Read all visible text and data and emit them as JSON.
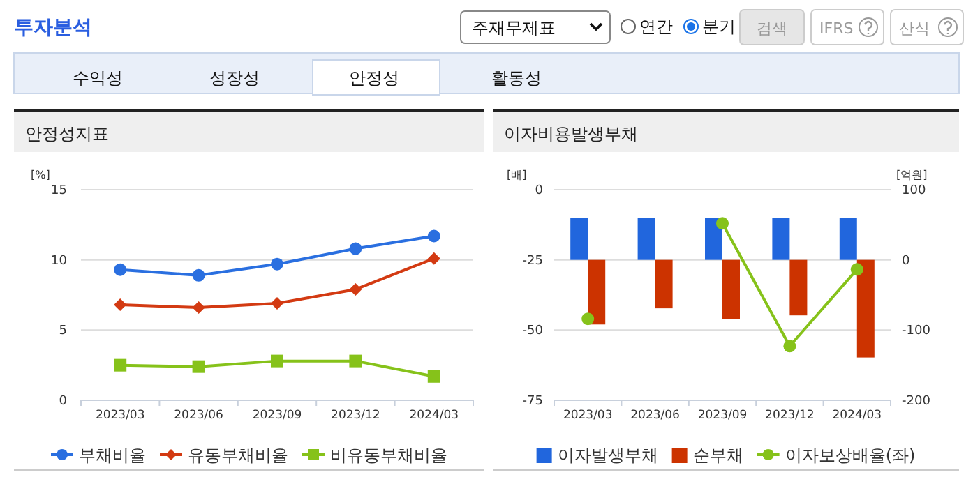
{
  "chart_data": [
    {
      "type": "other",
      "title": "투자분석",
      "annotations": [
        "주재무제표",
        "연간",
        "분기",
        "검색",
        "IFRS",
        "산식",
        "수익성",
        "성장성",
        "안정성",
        "활동성"
      ]
    },
    {
      "type": "line",
      "title": "안정성지표",
      "ylabel": "[%]",
      "categories": [
        "2023/03",
        "2023/06",
        "2023/09",
        "2023/12",
        "2024/03"
      ],
      "ylim": [
        0,
        15
      ],
      "yticks": [
        0,
        5,
        10,
        15
      ],
      "grid": "y",
      "legend": "bottom",
      "series": [
        {
          "name": "부채비율",
          "color": "#2a6fe0",
          "marker": "circle",
          "values": [
            9.3,
            8.9,
            9.7,
            10.8,
            11.7
          ]
        },
        {
          "name": "유동부채비율",
          "color": "#d33a12",
          "marker": "diamond",
          "values": [
            6.8,
            6.6,
            6.9,
            7.9,
            10.1
          ]
        },
        {
          "name": "비유동부채비율",
          "color": "#86c21a",
          "marker": "square",
          "values": [
            2.5,
            2.4,
            2.8,
            2.8,
            1.7
          ]
        }
      ]
    },
    {
      "type": "bar",
      "title": "이자비용발생부채",
      "ylabel": "[배]",
      "y2label": "[억원]",
      "categories": [
        "2023/03",
        "2023/06",
        "2023/09",
        "2023/12",
        "2024/03"
      ],
      "ylim": [
        -75,
        0
      ],
      "yticks": [
        -75,
        -50,
        -25,
        0
      ],
      "y2lim": [
        -200,
        100
      ],
      "y2ticks": [
        -200,
        -100,
        0,
        100
      ],
      "grid": "y",
      "legend": "bottom",
      "series": [
        {
          "name": "이자발생부채",
          "type": "bar",
          "axis": "y2",
          "color": "#2166dd",
          "values": [
            60,
            60,
            60,
            60,
            60
          ]
        },
        {
          "name": "순부채",
          "type": "bar",
          "axis": "y2",
          "color": "#cc3300",
          "values": [
            -92,
            -69,
            -84,
            -79,
            -139
          ]
        },
        {
          "name": "이자보상배율(좌)",
          "type": "line",
          "axis": "y",
          "color": "#86c21a",
          "marker": "circle",
          "values": [
            -46,
            null,
            -12,
            -55.7,
            -28.4
          ]
        }
      ]
    }
  ]
}
